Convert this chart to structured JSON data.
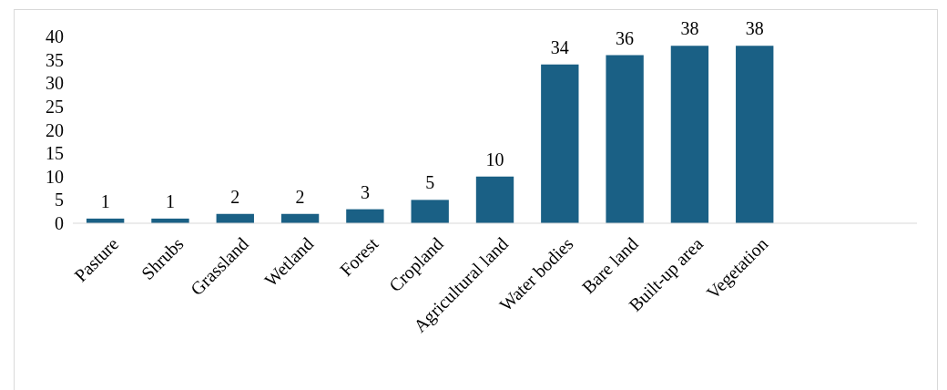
{
  "chart_data": {
    "type": "bar",
    "categories": [
      "Pasture",
      "Shrubs",
      "Grassland",
      "Wetland",
      "Forest",
      "Cropland",
      "Agricultural land",
      "Water bodies",
      "Bare land",
      "Built-up area",
      "Vegetation",
      null,
      null
    ],
    "values": [
      1,
      1,
      2,
      2,
      3,
      5,
      10,
      34,
      36,
      38,
      38,
      null,
      null
    ],
    "color": "#1a6085",
    "ylim": [
      0,
      40
    ],
    "yticks": [
      0,
      5,
      10,
      15,
      20,
      25,
      30,
      35,
      40
    ],
    "data_labels": true
  }
}
